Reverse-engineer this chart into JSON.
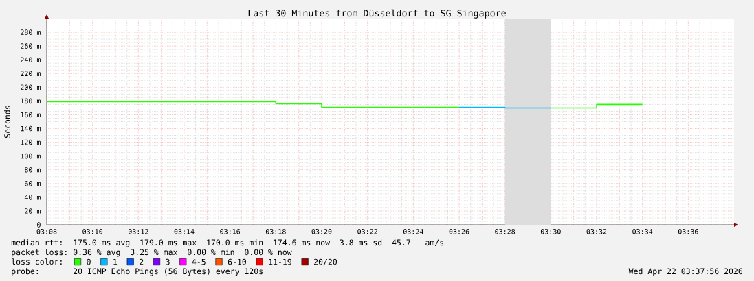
{
  "chart_data": {
    "type": "step",
    "title": "Last 30 Minutes from Düsseldorf to SG Singapore",
    "ylabel": "Seconds",
    "legend_title": "loss color:",
    "x": [
      "2026-04-22T03:08",
      "2026-04-22T03:10",
      "2026-04-22T03:12",
      "2026-04-22T03:14",
      "2026-04-22T03:16",
      "2026-04-22T03:18",
      "2026-04-22T03:20",
      "2026-04-22T03:22",
      "2026-04-22T03:24",
      "2026-04-22T03:26",
      "2026-04-22T03:28",
      "2026-04-22T03:30",
      "2026-04-22T03:32",
      "2026-04-22T03:34"
    ],
    "series": [
      {
        "name": "0",
        "color": "#26ff00",
        "values": [
          179,
          179,
          179,
          179,
          179,
          176,
          171,
          171,
          171,
          171,
          null,
          170,
          175,
          175
        ]
      },
      {
        "name": "1",
        "color": "#00b8ff",
        "values": [
          null,
          null,
          null,
          null,
          null,
          null,
          null,
          null,
          null,
          171,
          170,
          170,
          null,
          null
        ]
      },
      {
        "name": "2",
        "color": "#0059ff",
        "values": [
          null,
          null,
          null,
          null,
          null,
          null,
          null,
          null,
          null,
          null,
          null,
          null,
          null,
          null
        ]
      },
      {
        "name": "3",
        "color": "#7e00ff",
        "values": [
          null,
          null,
          null,
          null,
          null,
          null,
          null,
          null,
          null,
          null,
          null,
          null,
          null,
          null
        ]
      },
      {
        "name": "4-5",
        "color": "#ff00ff",
        "values": [
          null,
          null,
          null,
          null,
          null,
          null,
          null,
          null,
          null,
          null,
          null,
          null,
          null,
          null
        ]
      },
      {
        "name": "6-10",
        "color": "#ff5500",
        "values": [
          null,
          null,
          null,
          null,
          null,
          null,
          null,
          null,
          null,
          null,
          null,
          null,
          null,
          null
        ]
      },
      {
        "name": "11-19",
        "color": "#ff0000",
        "values": [
          null,
          null,
          null,
          null,
          null,
          null,
          null,
          null,
          null,
          null,
          null,
          null,
          null,
          null
        ]
      },
      {
        "name": "20/20",
        "color": "#a10000",
        "values": [
          null,
          null,
          null,
          null,
          null,
          null,
          null,
          null,
          null,
          null,
          null,
          null,
          null,
          null
        ]
      }
    ],
    "xlim": [
      "2026-04-22T03:08",
      "2026-04-22T03:38"
    ],
    "xticks": [
      {
        "value": "2026-04-22T03:08",
        "label": "03:08"
      },
      {
        "value": "2026-04-22T03:09",
        "label": null
      },
      {
        "value": "2026-04-22T03:10",
        "label": "03:10"
      },
      {
        "value": "2026-04-22T03:11",
        "label": null
      },
      {
        "value": "2026-04-22T03:12",
        "label": "03:12"
      },
      {
        "value": "2026-04-22T03:13",
        "label": null
      },
      {
        "value": "2026-04-22T03:14",
        "label": "03:14"
      },
      {
        "value": "2026-04-22T03:15",
        "label": null
      },
      {
        "value": "2026-04-22T03:16",
        "label": "03:16"
      },
      {
        "value": "2026-04-22T03:17",
        "label": null
      },
      {
        "value": "2026-04-22T03:18",
        "label": "03:18"
      },
      {
        "value": "2026-04-22T03:19",
        "label": null
      },
      {
        "value": "2026-04-22T03:20",
        "label": "03:20"
      },
      {
        "value": "2026-04-22T03:21",
        "label": null
      },
      {
        "value": "2026-04-22T03:22",
        "label": "03:22"
      },
      {
        "value": "2026-04-22T03:23",
        "label": null
      },
      {
        "value": "2026-04-22T03:24",
        "label": "03:24"
      },
      {
        "value": "2026-04-22T03:25",
        "label": null
      },
      {
        "value": "2026-04-22T03:26",
        "label": "03:26"
      },
      {
        "value": "2026-04-22T03:27",
        "label": null
      },
      {
        "value": "2026-04-22T03:28",
        "label": "03:28"
      },
      {
        "value": "2026-04-22T03:29",
        "label": null
      },
      {
        "value": "2026-04-22T03:30",
        "label": "03:30"
      },
      {
        "value": "2026-04-22T03:31",
        "label": null
      },
      {
        "value": "2026-04-22T03:32",
        "label": "03:32"
      },
      {
        "value": "2026-04-22T03:33",
        "label": null
      },
      {
        "value": "2026-04-22T03:34",
        "label": "03:34"
      },
      {
        "value": "2026-04-22T03:35",
        "label": null
      },
      {
        "value": "2026-04-22T03:36",
        "label": "03:36"
      },
      {
        "value": "2026-04-22T03:37",
        "label": null
      }
    ],
    "ylim": [
      0,
      300
    ],
    "yticks": [
      0,
      {
        "value": 20,
        "label": "20 m"
      },
      {
        "value": 40,
        "label": "40 m"
      },
      {
        "value": 60,
        "label": "60 m"
      },
      {
        "value": 80,
        "label": "80 m"
      },
      {
        "value": 100,
        "label": "100 m"
      },
      {
        "value": 120,
        "label": "120 m"
      },
      {
        "value": 140,
        "label": "140 m"
      },
      {
        "value": 160,
        "label": "160 m"
      },
      {
        "value": 180,
        "label": "180 m"
      },
      {
        "value": 200,
        "label": "200 m"
      },
      {
        "value": 220,
        "label": "220 m"
      },
      {
        "value": 240,
        "label": "240 m"
      },
      {
        "value": 260,
        "label": "260 m"
      },
      {
        "value": 280,
        "label": "280 m"
      }
    ],
    "grid": true,
    "legend": "bottom",
    "bands": [
      {
        "axis": "x",
        "from": "2026-04-22T03:28",
        "to": "2026-04-22T03:30",
        "color": "#dddddd"
      }
    ],
    "annotations": [
      "median rtt:  175.0 ms avg  179.0 ms max  170.0 ms min  174.6 ms now  3.8 ms sd  45.7   am/s",
      "packet loss: 0.36 % avg  3.25 % max  0.00 % min  0.00 % now",
      "probe:       20 ICMP Echo Pings (56 Bytes) every 120s",
      "Wed Apr 22 03:37:56 2026"
    ]
  }
}
